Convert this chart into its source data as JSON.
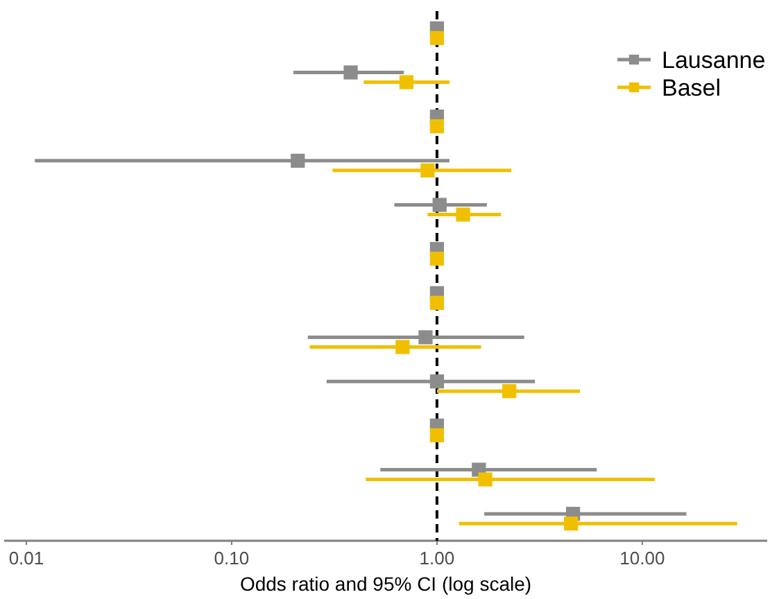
{
  "chart_data": {
    "type": "scatter",
    "orientation": "horizontal",
    "xlabel": "Odds ratio and 95% CI (log scale)",
    "categories": [
      null,
      null,
      null,
      null,
      null,
      null,
      null,
      null,
      null,
      null,
      null,
      null
    ],
    "series": [
      {
        "name": "Lausanne",
        "color": "#8c8c8c",
        "values": [
          1,
          0.38,
          1,
          0.21,
          1.03,
          1,
          1,
          0.88,
          1,
          1,
          1.6,
          4.6
        ],
        "errors": [
          null,
          [
            0.2,
            0.69
          ],
          null,
          [
            0.011,
            1.15
          ],
          [
            0.62,
            1.75
          ],
          null,
          null,
          [
            0.235,
            2.66
          ],
          [
            0.29,
            3.0
          ],
          null,
          [
            0.53,
            6.0
          ],
          [
            1.7,
            16.4
          ]
        ]
      },
      {
        "name": "Basel",
        "color": "#f0c000",
        "values": [
          1,
          0.71,
          1,
          0.9,
          1.34,
          1,
          1,
          0.68,
          2.25,
          1,
          1.72,
          4.5
        ],
        "errors": [
          null,
          [
            0.44,
            1.15
          ],
          null,
          [
            0.31,
            2.3
          ],
          [
            0.9,
            2.05
          ],
          null,
          null,
          [
            0.24,
            1.64
          ],
          [
            1.0,
            4.97
          ],
          null,
          [
            0.45,
            11.5
          ],
          [
            1.28,
            29
          ]
        ]
      }
    ],
    "xlim": [
      0.0078,
      40.6
    ],
    "xticks": [
      {
        "value": 0.01,
        "label": "0.01"
      },
      {
        "value": 0.1,
        "label": "0.10"
      },
      {
        "value": 1,
        "label": "1.00"
      },
      {
        "value": 10,
        "label": "10.00"
      }
    ],
    "log": "x",
    "grid": false,
    "legend": "top right",
    "marker": "square",
    "tick_labels": "x",
    "ref_lines": [
      {
        "axis": "x",
        "value": 1,
        "color": "#000000",
        "line_style": "dashed"
      }
    ]
  }
}
